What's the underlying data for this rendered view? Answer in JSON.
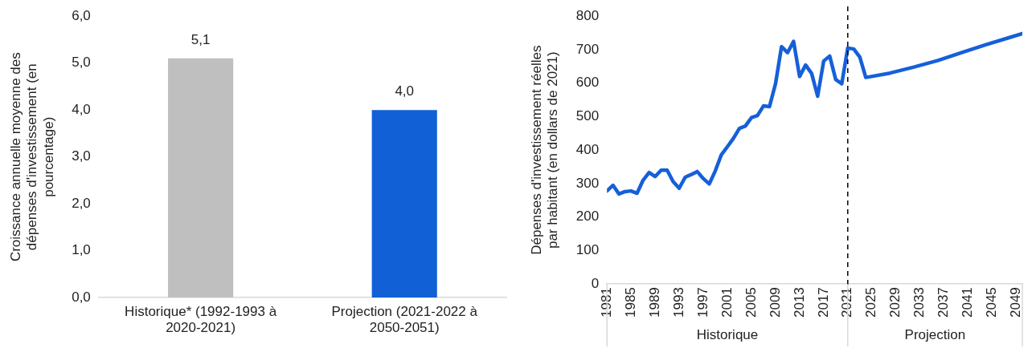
{
  "chart_data": [
    {
      "type": "bar",
      "ylabel": "Croissance annuelle moyenne des dépenses d'investissement (en pourcentage)",
      "categories": [
        "Historique* (1992-1993 à 2020-2021)",
        "Projection (2021-2022 à 2050-2051)"
      ],
      "values": [
        5.1,
        4.0
      ],
      "colors": [
        "#bfbfbf",
        "#1160d6"
      ],
      "value_labels": [
        "5,1",
        "4,0"
      ],
      "ylim": [
        0,
        6
      ],
      "yticks": [
        {
          "value": 0,
          "label": "0,0"
        },
        {
          "value": 1,
          "label": "1,0"
        },
        {
          "value": 2,
          "label": "2,0"
        },
        {
          "value": 3,
          "label": "3,0"
        },
        {
          "value": 4,
          "label": "4,0"
        },
        {
          "value": 5,
          "label": "5,0"
        },
        {
          "value": 6,
          "label": "6,0"
        }
      ],
      "grid": false,
      "legend": false
    },
    {
      "type": "line",
      "ylabel": "Dépenses d'investissement réelles par habitant (en dollars de 2021)",
      "series": [
        {
          "color": "#1560d9",
          "x": [
            1981,
            1982,
            1983,
            1984,
            1985,
            1986,
            1987,
            1988,
            1989,
            1990,
            1991,
            1992,
            1993,
            1994,
            1995,
            1996,
            1997,
            1998,
            1999,
            2000,
            2001,
            2002,
            2003,
            2004,
            2005,
            2006,
            2007,
            2008,
            2009,
            2010,
            2011,
            2012,
            2013,
            2014,
            2015,
            2016,
            2017,
            2018,
            2019,
            2020,
            2021,
            2022,
            2023,
            2024,
            2028,
            2032,
            2036,
            2040,
            2044,
            2048,
            2050
          ],
          "values": [
            278,
            295,
            269,
            276,
            278,
            271,
            310,
            333,
            321,
            340,
            340,
            306,
            286,
            319,
            327,
            336,
            315,
            299,
            338,
            386,
            410,
            435,
            465,
            472,
            497,
            503,
            532,
            530,
            598,
            709,
            691,
            725,
            620,
            654,
            629,
            561,
            666,
            681,
            611,
            598,
            705,
            702,
            678,
            617,
            630,
            648,
            668,
            692,
            715,
            737,
            748
          ]
        }
      ],
      "xlim": [
        1981,
        2050
      ],
      "xticks": [
        1981,
        1985,
        1989,
        1993,
        1997,
        2001,
        2005,
        2009,
        2013,
        2017,
        2021,
        2025,
        2029,
        2033,
        2037,
        2041,
        2045,
        2049
      ],
      "ylim": [
        0,
        800
      ],
      "yticks": [
        0,
        100,
        200,
        300,
        400,
        500,
        600,
        700,
        800
      ],
      "grid": false,
      "legend": false,
      "marker": "none",
      "line_style": "solid",
      "ref_lines": [
        {
          "axis": "x",
          "value": 2021,
          "color": "#000000",
          "line_style": "dashed"
        }
      ],
      "annotations": [
        "Historique",
        "Projection"
      ]
    }
  ]
}
